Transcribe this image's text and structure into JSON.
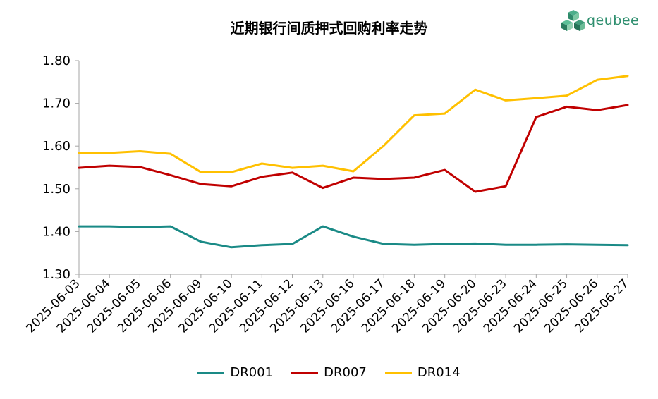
{
  "chart_data": {
    "type": "line",
    "title": "近期银行间质押式回购利率走势",
    "x": [
      "2025-06-03",
      "2025-06-04",
      "2025-06-05",
      "2025-06-06",
      "2025-06-09",
      "2025-06-10",
      "2025-06-11",
      "2025-06-12",
      "2025-06-13",
      "2025-06-16",
      "2025-06-17",
      "2025-06-18",
      "2025-06-19",
      "2025-06-20",
      "2025-06-23",
      "2025-06-24",
      "2025-06-25",
      "2025-06-26",
      "2025-06-27"
    ],
    "yticks": [
      "1.30",
      "1.40",
      "1.50",
      "1.60",
      "1.70",
      "1.80"
    ],
    "ylim": [
      1.3,
      1.8
    ],
    "xlabel": "",
    "ylabel": "",
    "legend_position": "bottom",
    "series": [
      {
        "name": "DR001",
        "color": "#1a8a86",
        "values": [
          1.412,
          1.412,
          1.41,
          1.412,
          1.376,
          1.363,
          1.368,
          1.371,
          1.412,
          1.388,
          1.371,
          1.369,
          1.371,
          1.372,
          1.369,
          1.369,
          1.37,
          1.369,
          1.368
        ]
      },
      {
        "name": "DR007",
        "color": "#c00000",
        "values": [
          1.549,
          1.554,
          1.551,
          1.532,
          1.511,
          1.506,
          1.528,
          1.538,
          1.502,
          1.526,
          1.523,
          1.526,
          1.544,
          1.493,
          1.506,
          1.668,
          1.692,
          1.684,
          1.696
        ]
      },
      {
        "name": "DR014",
        "color": "#ffc000",
        "values": [
          1.584,
          1.584,
          1.588,
          1.582,
          1.539,
          1.539,
          1.559,
          1.549,
          1.554,
          1.541,
          1.601,
          1.672,
          1.676,
          1.732,
          1.707,
          1.712,
          1.718,
          1.755,
          1.764
        ]
      }
    ]
  },
  "logo": {
    "text": "qeubee"
  }
}
